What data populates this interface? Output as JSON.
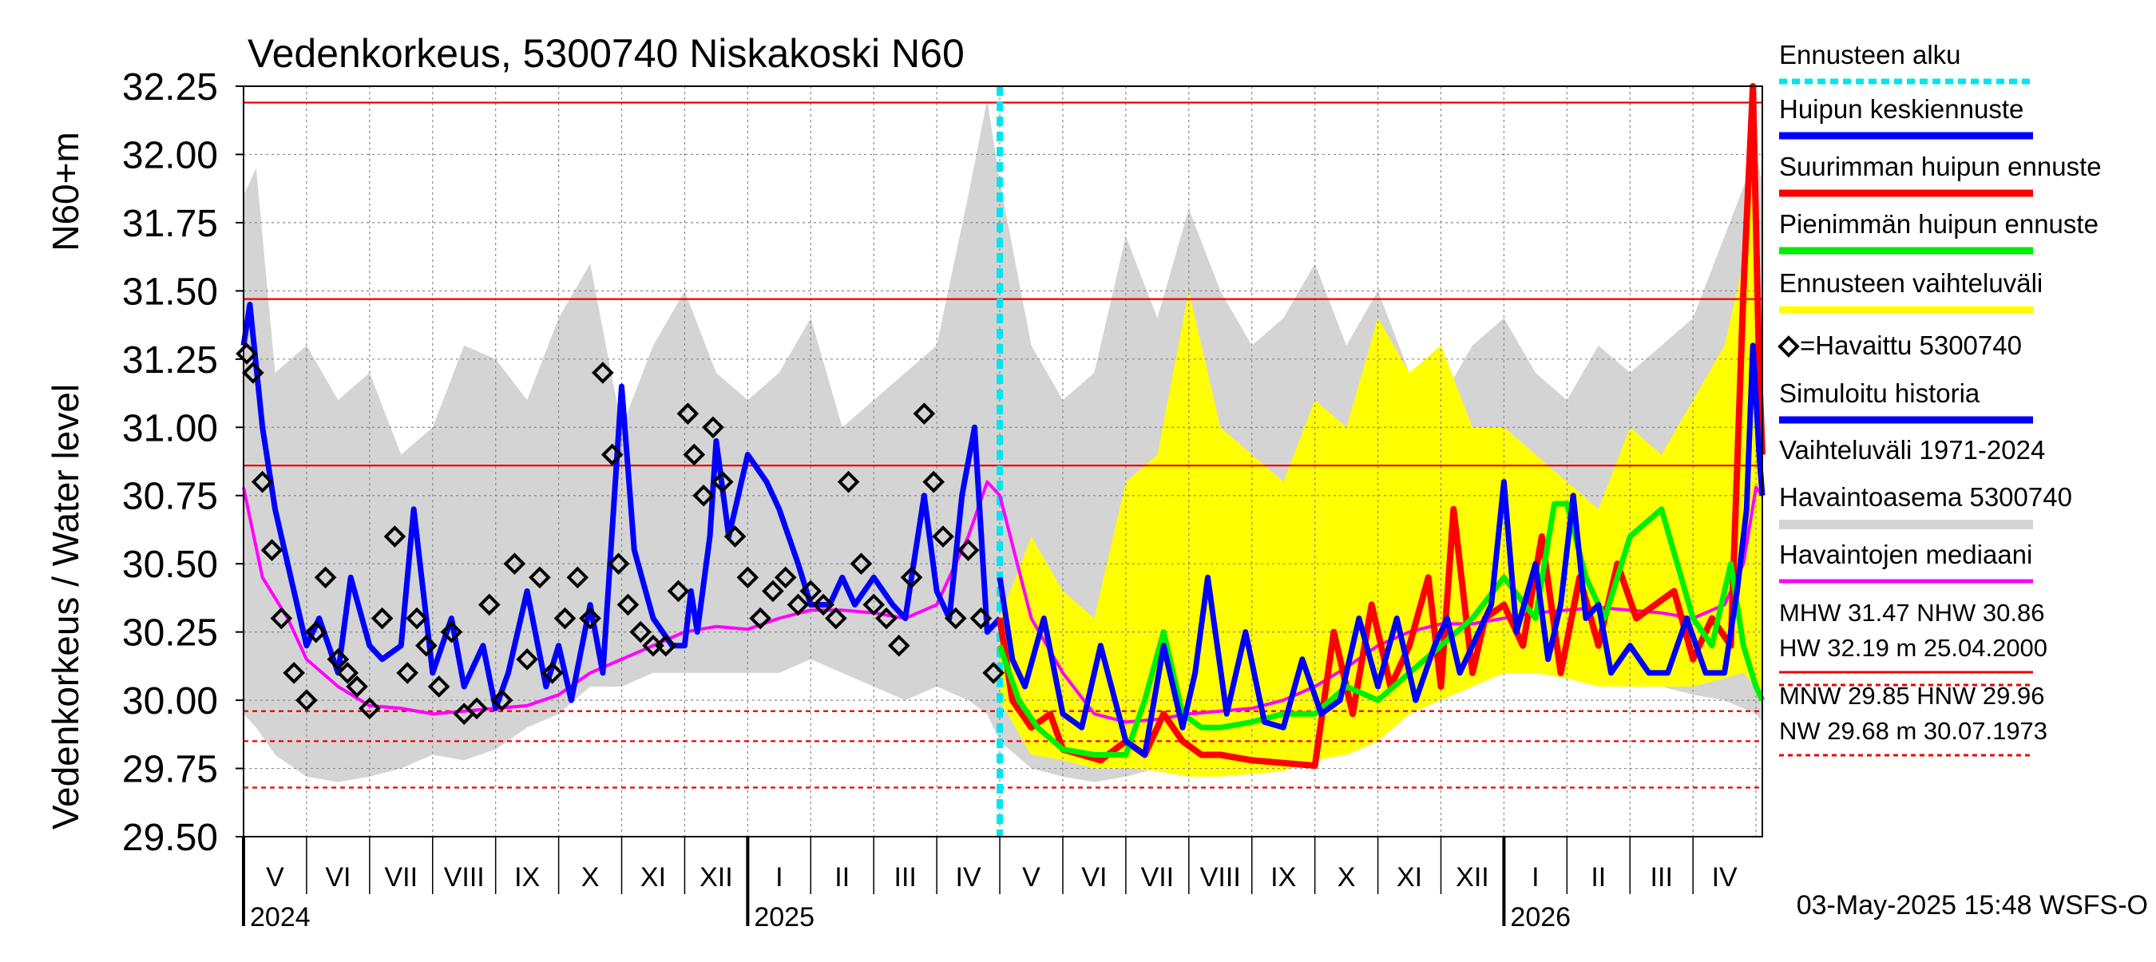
{
  "chart_data": {
    "type": "line",
    "title": "Vedenkorkeus, 5300740 Niskakoski N60",
    "ylabel": "Vedenkorkeus / Water level",
    "ylabel_unit": "N60+m",
    "ylim": [
      29.5,
      32.25
    ],
    "yticks": [
      "29.50",
      "29.75",
      "30.00",
      "30.25",
      "30.50",
      "30.75",
      "31.00",
      "31.25",
      "31.50",
      "31.75",
      "32.00",
      "32.25"
    ],
    "x_domain_months": [
      0,
      24.1
    ],
    "month_labels": [
      "V",
      "VI",
      "VII",
      "VIII",
      "IX",
      "X",
      "XI",
      "XII",
      "I",
      "II",
      "III",
      "IV",
      "V",
      "VI",
      "VII",
      "VIII",
      "IX",
      "X",
      "XI",
      "XII",
      "I",
      "II",
      "III",
      "IV"
    ],
    "year_labels": [
      {
        "label": "2024",
        "month_index": 0
      },
      {
        "label": "2025",
        "month_index": 8
      },
      {
        "label": "2026",
        "month_index": 20
      }
    ],
    "forecast_start_month": 12.0,
    "reference_lines": [
      {
        "name": "HW",
        "value": 32.19,
        "style": "solid"
      },
      {
        "name": "MHW",
        "value": 31.47,
        "style": "solid"
      },
      {
        "name": "NHW",
        "value": 30.86,
        "style": "solid"
      },
      {
        "name": "HNW",
        "value": 29.96,
        "style": "dashed"
      },
      {
        "name": "MNW",
        "value": 29.85,
        "style": "dashed"
      },
      {
        "name": "NW",
        "value": 29.68,
        "style": "dashed"
      }
    ],
    "colors": {
      "range": "#d4d4d4",
      "forecast_band": "#ffff00",
      "observed": "#000000",
      "simulated": "#0000ff",
      "max_forecast": "#ff0000",
      "min_forecast": "#00ee00",
      "median": "#ff00ff",
      "forecast_start": "#00e5ee",
      "reference": "#ee0000",
      "grid": "#888888"
    },
    "series": [
      {
        "name": "Vaihteluväli 1971-2024",
        "kind": "band",
        "x": [
          0,
          0.2,
          0.5,
          1,
          1.5,
          2,
          2.5,
          3,
          3.5,
          4,
          4.5,
          5,
          5.5,
          6,
          6.5,
          7,
          7.5,
          8,
          8.5,
          9,
          9.5,
          10,
          10.5,
          11,
          11.5,
          11.8,
          12,
          12.5,
          13,
          13.5,
          14,
          14.5,
          15,
          15.5,
          16,
          16.5,
          17,
          17.5,
          18,
          18.5,
          19,
          19.5,
          20,
          20.5,
          21,
          21.5,
          22,
          22.5,
          23,
          23.5,
          24,
          24.1
        ],
        "upper": [
          31.85,
          31.95,
          31.2,
          31.3,
          31.1,
          31.2,
          30.9,
          31.0,
          31.3,
          31.25,
          31.1,
          31.4,
          31.6,
          31.0,
          31.3,
          31.5,
          31.2,
          31.1,
          31.2,
          31.4,
          31.0,
          31.1,
          31.2,
          31.3,
          31.85,
          32.2,
          31.9,
          31.3,
          31.1,
          31.2,
          31.7,
          31.4,
          31.8,
          31.5,
          31.3,
          31.4,
          31.6,
          31.3,
          31.5,
          31.2,
          31.1,
          31.3,
          31.4,
          31.2,
          31.1,
          31.3,
          31.2,
          31.3,
          31.4,
          31.7,
          32.0,
          31.9
        ],
        "lower": [
          29.95,
          29.9,
          29.8,
          29.72,
          29.7,
          29.72,
          29.75,
          29.8,
          29.78,
          29.82,
          29.9,
          29.95,
          30.05,
          30.05,
          30.1,
          30.1,
          30.1,
          30.1,
          30.1,
          30.15,
          30.1,
          30.05,
          30.0,
          30.05,
          30.0,
          29.95,
          29.85,
          29.75,
          29.72,
          29.7,
          29.72,
          29.75,
          29.78,
          29.8,
          29.82,
          29.88,
          29.95,
          30.0,
          30.05,
          30.1,
          30.1,
          30.12,
          30.12,
          30.1,
          30.08,
          30.08,
          30.05,
          30.05,
          30.02,
          30.0,
          29.95,
          29.92
        ]
      },
      {
        "name": "Ennusteen vaihteluväli",
        "kind": "band",
        "x": [
          12.0,
          12.5,
          13,
          13.5,
          14,
          14.5,
          15,
          15.5,
          16,
          16.5,
          17,
          17.5,
          18,
          18.5,
          19,
          19.5,
          20,
          20.5,
          21,
          21.5,
          22,
          22.5,
          23,
          23.5,
          23.8,
          24,
          24.1
        ],
        "upper": [
          30.3,
          30.6,
          30.4,
          30.3,
          30.8,
          30.9,
          31.5,
          31.0,
          30.9,
          30.8,
          31.1,
          31.0,
          31.4,
          31.2,
          31.3,
          31.0,
          31.0,
          30.9,
          30.8,
          30.7,
          31.0,
          30.9,
          31.1,
          31.3,
          31.6,
          32.25,
          31.0
        ],
        "lower": [
          30.0,
          29.8,
          29.78,
          29.75,
          29.75,
          29.74,
          29.72,
          29.72,
          29.73,
          29.74,
          29.78,
          29.8,
          29.85,
          29.95,
          30.0,
          30.05,
          30.1,
          30.1,
          30.08,
          30.05,
          30.05,
          30.05,
          30.05,
          30.08,
          30.1,
          30.05,
          30.05
        ]
      },
      {
        "name": "Havaintojen mediaani",
        "kind": "line",
        "x": [
          0,
          0.3,
          0.7,
          1,
          1.5,
          2,
          2.5,
          3,
          3.5,
          4,
          4.5,
          5,
          5.5,
          6,
          6.5,
          7,
          7.5,
          8,
          8.5,
          9,
          9.5,
          10,
          10.5,
          11,
          11.5,
          11.8,
          12,
          12.5,
          13,
          13.5,
          14,
          14.5,
          15,
          15.5,
          16,
          16.5,
          17,
          17.5,
          18,
          18.5,
          19,
          19.5,
          20,
          20.5,
          21,
          21.5,
          22,
          22.5,
          23,
          23.5,
          23.8,
          24,
          24.1
        ],
        "y": [
          30.78,
          30.45,
          30.3,
          30.15,
          30.05,
          29.98,
          29.97,
          29.95,
          29.96,
          29.97,
          29.98,
          30.02,
          30.1,
          30.15,
          30.2,
          30.25,
          30.27,
          30.26,
          30.3,
          30.33,
          30.33,
          30.32,
          30.3,
          30.35,
          30.6,
          30.8,
          30.75,
          30.3,
          30.1,
          29.95,
          29.92,
          29.93,
          29.95,
          29.96,
          29.97,
          30.0,
          30.05,
          30.12,
          30.2,
          30.25,
          30.28,
          30.28,
          30.3,
          30.32,
          30.33,
          30.34,
          30.33,
          30.32,
          30.3,
          30.35,
          30.5,
          30.78,
          30.75
        ]
      },
      {
        "name": "Simuloitu historia",
        "kind": "line",
        "x": [
          0,
          0.1,
          0.3,
          0.5,
          0.8,
          1,
          1.2,
          1.5,
          1.7,
          2,
          2.2,
          2.5,
          2.7,
          3,
          3.3,
          3.5,
          3.8,
          4,
          4.2,
          4.5,
          4.8,
          5,
          5.2,
          5.5,
          5.7,
          5.9,
          6,
          6.2,
          6.5,
          6.8,
          7,
          7.1,
          7.2,
          7.4,
          7.5,
          7.7,
          8,
          8.3,
          8.5,
          8.8,
          9,
          9.3,
          9.5,
          9.7,
          10,
          10.3,
          10.5,
          10.8,
          11,
          11.2,
          11.4,
          11.6,
          11.8,
          12.0
        ],
        "y": [
          31.3,
          31.45,
          31.0,
          30.7,
          30.4,
          30.2,
          30.3,
          30.1,
          30.45,
          30.2,
          30.15,
          30.2,
          30.7,
          30.1,
          30.3,
          30.05,
          30.2,
          29.97,
          30.1,
          30.4,
          30.05,
          30.2,
          30.0,
          30.35,
          30.1,
          30.8,
          31.15,
          30.55,
          30.3,
          30.2,
          30.2,
          30.4,
          30.25,
          30.6,
          30.95,
          30.6,
          30.9,
          30.8,
          30.7,
          30.5,
          30.35,
          30.35,
          30.45,
          30.35,
          30.45,
          30.35,
          30.3,
          30.75,
          30.4,
          30.3,
          30.75,
          31.0,
          30.25,
          30.3
        ]
      },
      {
        "name": "Havaittu 5300740",
        "kind": "scatter",
        "x": [
          0.05,
          0.15,
          0.3,
          0.45,
          0.6,
          0.8,
          1.0,
          1.15,
          1.3,
          1.5,
          1.65,
          1.8,
          2.0,
          2.2,
          2.4,
          2.6,
          2.75,
          2.9,
          3.1,
          3.3,
          3.5,
          3.7,
          3.9,
          4.1,
          4.3,
          4.5,
          4.7,
          4.9,
          5.1,
          5.3,
          5.5,
          5.7,
          5.85,
          5.95,
          6.1,
          6.3,
          6.5,
          6.7,
          6.9,
          7.05,
          7.15,
          7.3,
          7.45,
          7.6,
          7.8,
          8.0,
          8.2,
          8.4,
          8.6,
          8.8,
          9.0,
          9.2,
          9.4,
          9.6,
          9.8,
          10.0,
          10.2,
          10.4,
          10.6,
          10.8,
          10.95,
          11.1,
          11.3,
          11.5,
          11.7,
          11.9
        ],
        "y": [
          31.27,
          31.2,
          30.8,
          30.55,
          30.3,
          30.1,
          30.0,
          30.25,
          30.45,
          30.15,
          30.1,
          30.05,
          29.97,
          30.3,
          30.6,
          30.1,
          30.3,
          30.2,
          30.05,
          30.25,
          29.95,
          29.97,
          30.35,
          30.0,
          30.5,
          30.15,
          30.45,
          30.1,
          30.3,
          30.45,
          30.3,
          31.2,
          30.9,
          30.5,
          30.35,
          30.25,
          30.2,
          30.2,
          30.4,
          31.05,
          30.9,
          30.75,
          31.0,
          30.8,
          30.6,
          30.45,
          30.3,
          30.4,
          30.45,
          30.35,
          30.4,
          30.35,
          30.3,
          30.8,
          30.5,
          30.35,
          30.3,
          30.2,
          30.45,
          31.05,
          30.8,
          30.6,
          30.3,
          30.55,
          30.3,
          30.1
        ]
      },
      {
        "name": "Suurimman huipun ennuste",
        "kind": "line",
        "x": [
          12.0,
          12.2,
          12.5,
          12.8,
          13,
          13.3,
          13.6,
          14,
          14.3,
          14.6,
          14.9,
          15.2,
          15.5,
          16,
          16.5,
          17,
          17.3,
          17.6,
          17.9,
          18.2,
          18.5,
          18.8,
          19.0,
          19.2,
          19.5,
          19.7,
          20,
          20.3,
          20.6,
          20.9,
          21.2,
          21.5,
          21.8,
          22.1,
          22.4,
          22.7,
          23,
          23.3,
          23.6,
          23.8,
          23.95,
          24.05,
          24.1
        ],
        "y": [
          30.3,
          30.0,
          29.9,
          29.95,
          29.82,
          29.8,
          29.78,
          29.85,
          29.8,
          29.95,
          29.85,
          29.8,
          29.8,
          29.78,
          29.77,
          29.76,
          30.25,
          29.95,
          30.35,
          30.05,
          30.2,
          30.45,
          30.05,
          30.7,
          30.1,
          30.3,
          30.35,
          30.2,
          30.6,
          30.1,
          30.45,
          30.2,
          30.5,
          30.3,
          30.35,
          30.4,
          30.15,
          30.3,
          30.2,
          31.5,
          32.25,
          31.2,
          30.9
        ]
      },
      {
        "name": "Pienimmän huipun ennuste",
        "kind": "line",
        "x": [
          12.0,
          12.3,
          12.6,
          13,
          13.5,
          14,
          14.3,
          14.6,
          14.9,
          15.2,
          15.5,
          16,
          16.5,
          17,
          17.5,
          18,
          18.5,
          19,
          19.5,
          20,
          20.5,
          20.8,
          21.0,
          21.3,
          21.6,
          22,
          22.5,
          23,
          23.3,
          23.6,
          23.8,
          24.0,
          24.1
        ],
        "y": [
          30.2,
          30.0,
          29.9,
          29.82,
          29.8,
          29.8,
          30.0,
          30.25,
          29.95,
          29.9,
          29.9,
          29.92,
          29.95,
          29.95,
          30.05,
          30.0,
          30.1,
          30.2,
          30.3,
          30.45,
          30.3,
          30.72,
          30.72,
          30.45,
          30.3,
          30.6,
          30.7,
          30.3,
          30.2,
          30.5,
          30.2,
          30.05,
          30.0
        ]
      },
      {
        "name": "Huipun keskiennuste",
        "kind": "line",
        "x": [
          12.0,
          12.2,
          12.4,
          12.7,
          13.0,
          13.3,
          13.6,
          14.0,
          14.3,
          14.6,
          14.9,
          15.1,
          15.3,
          15.6,
          15.9,
          16.2,
          16.5,
          16.8,
          17.1,
          17.4,
          17.7,
          18.0,
          18.3,
          18.6,
          18.9,
          19.1,
          19.3,
          19.6,
          19.8,
          20.0,
          20.2,
          20.5,
          20.7,
          20.9,
          21.1,
          21.3,
          21.5,
          21.7,
          22.0,
          22.3,
          22.6,
          22.9,
          23.2,
          23.5,
          23.7,
          23.85,
          23.95,
          24.05,
          24.1
        ],
        "y": [
          30.45,
          30.15,
          30.05,
          30.3,
          29.95,
          29.9,
          30.2,
          29.85,
          29.8,
          30.2,
          29.9,
          30.1,
          30.45,
          29.95,
          30.25,
          29.92,
          29.9,
          30.15,
          29.95,
          30.0,
          30.3,
          30.05,
          30.3,
          30.0,
          30.2,
          30.3,
          30.1,
          30.25,
          30.35,
          30.8,
          30.25,
          30.5,
          30.15,
          30.35,
          30.75,
          30.3,
          30.35,
          30.1,
          30.2,
          30.1,
          30.1,
          30.3,
          30.1,
          30.1,
          30.4,
          30.7,
          31.3,
          30.9,
          30.75
        ]
      }
    ],
    "legend": {
      "placement": "right",
      "entries": [
        {
          "label": "Ennusteen alku",
          "color": "#00e5ee",
          "style": "dashed"
        },
        {
          "label": "Huipun keskiennuste",
          "color": "#0000ff",
          "style": "solid"
        },
        {
          "label": "Suurimman huipun ennuste",
          "color": "#ff0000",
          "style": "solid"
        },
        {
          "label": "Pienimmän huipun ennuste",
          "color": "#00ee00",
          "style": "solid"
        },
        {
          "label": "Ennusteen vaihteluväli",
          "color": "#ffff00",
          "style": "solid"
        },
        {
          "label": "=Havaittu 5300740",
          "color": "#000000",
          "style": "marker"
        },
        {
          "label": "Simuloitu historia",
          "color": "#0000ff",
          "style": "solid"
        },
        {
          "label": "Vaihteluväli 1971-2024",
          "label2": " Havaintoasema 5300740",
          "color": "#d4d4d4",
          "style": "solid"
        },
        {
          "label": "Havaintojen mediaani",
          "color": "#ff00ff",
          "style": "solid"
        }
      ],
      "stats": [
        {
          "line1": "MHW  31.47 NHW  30.86",
          "line2": "HW  32.19 m 25.04.2000",
          "color": "#ee0000",
          "style": "solid"
        },
        {
          "line1": "MNW  29.85 HNW  29.96",
          "line2": "NW  29.68 m 30.07.1973",
          "color": "#ee0000",
          "style": "dashed"
        }
      ]
    },
    "footer": "03-May-2025 15:48 WSFS-O"
  }
}
